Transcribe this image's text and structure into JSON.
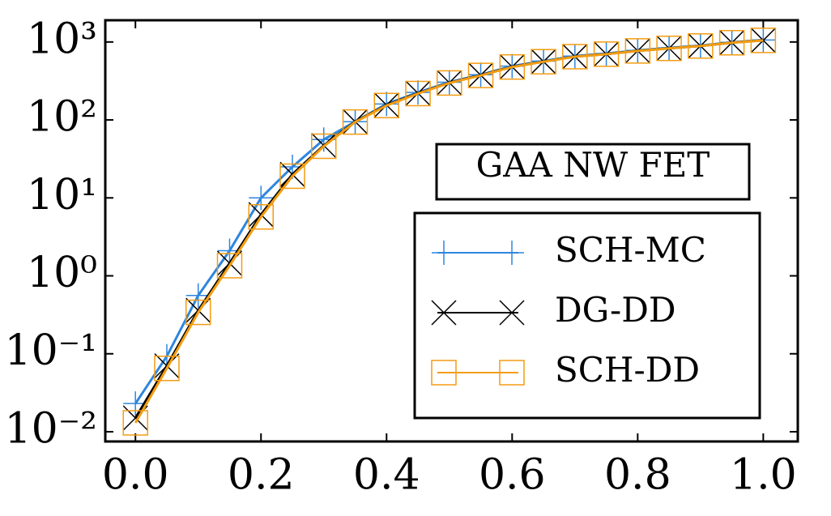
{
  "chart_data": {
    "type": "line",
    "annotation": "GAA NW FET",
    "x": [
      0,
      0.05,
      0.1,
      0.15,
      0.2,
      0.25,
      0.3,
      0.35,
      0.4,
      0.45,
      0.5,
      0.55,
      0.6,
      0.65,
      0.7,
      0.75,
      0.8,
      0.85,
      0.9,
      0.95,
      1.0
    ],
    "series": [
      {
        "name": "SCH-MC",
        "color": "#2e86de",
        "marker": "plus",
        "values": [
          0.023,
          0.093,
          0.56,
          2.1,
          10,
          25,
          56,
          95,
          160,
          225,
          305,
          380,
          490,
          570,
          660,
          710,
          780,
          840,
          900,
          990,
          1060
        ]
      },
      {
        "name": "DG-DD",
        "color": "#000000",
        "marker": "x",
        "values": [
          0.015,
          0.07,
          0.36,
          1.45,
          6.1,
          20,
          47,
          95,
          155,
          220,
          300,
          375,
          480,
          560,
          650,
          700,
          770,
          830,
          890,
          980,
          1050
        ]
      },
      {
        "name": "SCH-DD",
        "color": "#f39c12",
        "marker": "square",
        "values": [
          0.013,
          0.065,
          0.34,
          1.35,
          5.7,
          19,
          46,
          94,
          153,
          218,
          298,
          372,
          478,
          558,
          648,
          698,
          768,
          828,
          888,
          978,
          1048
        ]
      }
    ],
    "xlim": [
      -0.048,
      1.055
    ],
    "xticks": [
      {
        "value": 0,
        "label": "0.0"
      },
      0.2,
      0.4,
      0.6,
      0.8,
      {
        "value": 1,
        "label": "1.0"
      }
    ],
    "ylim": [
      0.0075,
      1900
    ],
    "log_y": true,
    "yticks": [
      {
        "value": 0.01,
        "label": "10⁻²"
      },
      {
        "value": 0.1,
        "label": "10⁻¹"
      },
      {
        "value": 1,
        "label": "10⁰"
      },
      {
        "value": 10,
        "label": "10¹"
      },
      {
        "value": 100,
        "label": "10²"
      },
      {
        "value": 1000,
        "label": "10³"
      }
    ],
    "legend": "lower right"
  }
}
